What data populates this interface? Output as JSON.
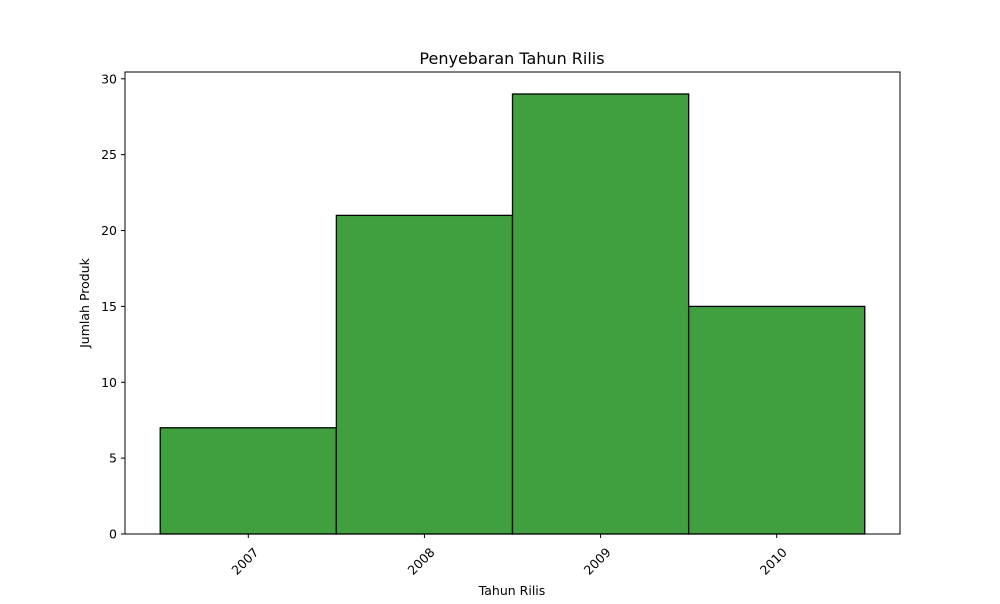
{
  "chart_data": {
    "type": "bar",
    "title": "Penyebaran Tahun Rilis",
    "xlabel": "Tahun Rilis",
    "ylabel": "Jumlah Produk",
    "categories": [
      "2007",
      "2008",
      "2009",
      "2010"
    ],
    "values": [
      7,
      21,
      29,
      15
    ],
    "ylim": [
      0,
      30.45
    ],
    "yticks": [
      0,
      5,
      10,
      15,
      20,
      25,
      30
    ],
    "xlim": [
      2006.3,
      2010.7
    ],
    "bin_edges": [
      2006.5,
      2007.5,
      2008.5,
      2009.5,
      2010.5
    ],
    "xtick_rotation_deg": 45,
    "grid": false,
    "legend": "none",
    "colors": {
      "bar_fill": "#40a040",
      "bar_edge": "#000000",
      "axis": "#000000",
      "background": "#ffffff"
    }
  }
}
